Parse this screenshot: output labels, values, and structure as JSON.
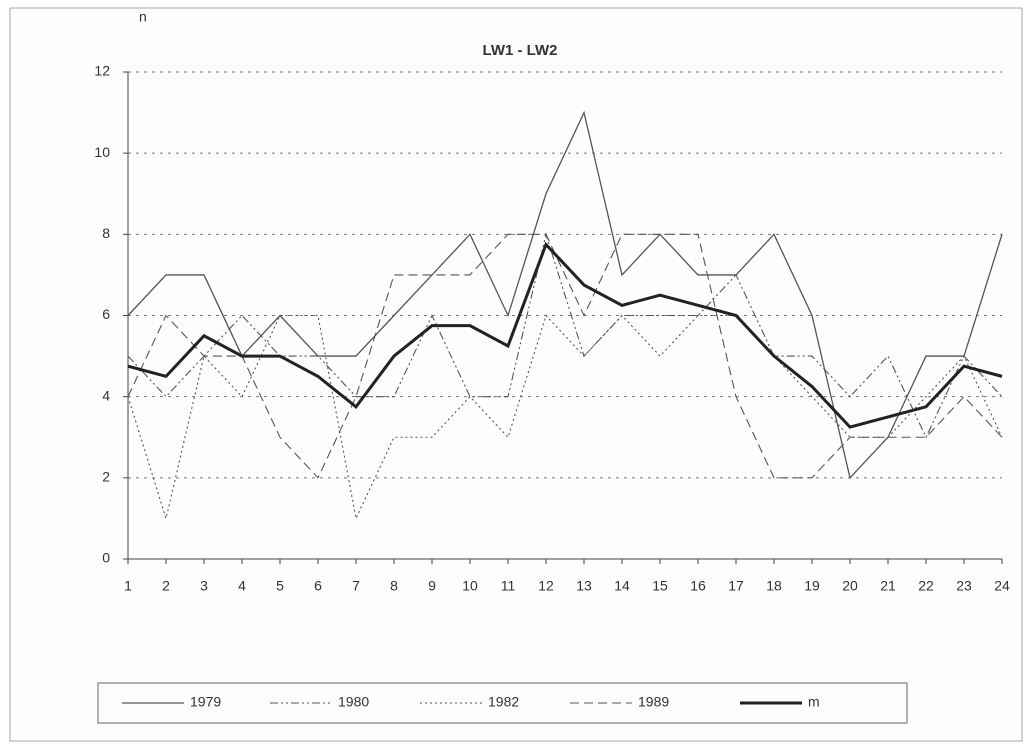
{
  "chart_data": {
    "type": "line",
    "title": "LW1 - LW2",
    "y_label": "n",
    "x": [
      1,
      2,
      3,
      4,
      5,
      6,
      7,
      8,
      9,
      10,
      11,
      12,
      13,
      14,
      15,
      16,
      17,
      18,
      19,
      20,
      21,
      22,
      23,
      24
    ],
    "xlim": [
      1,
      24
    ],
    "xticks": [
      1,
      2,
      3,
      4,
      5,
      6,
      7,
      8,
      9,
      10,
      11,
      12,
      13,
      14,
      15,
      16,
      17,
      18,
      19,
      20,
      21,
      22,
      23,
      24
    ],
    "ylim": [
      0,
      12
    ],
    "yticks": [
      0,
      2,
      4,
      6,
      8,
      10,
      12
    ],
    "grid": true,
    "legend": "bottom",
    "series": [
      {
        "name": "1979",
        "color": "#555555",
        "width": 1.3,
        "dash": "none",
        "values": [
          6,
          7,
          7,
          5,
          6,
          5,
          5,
          6,
          7,
          8,
          6,
          9,
          11,
          7,
          8,
          7,
          7,
          8,
          6,
          2,
          3,
          5,
          5,
          8
        ]
      },
      {
        "name": "1980",
        "color": "#555555",
        "width": 1.1,
        "dash": "8 3 2 3 2 3",
        "values": [
          5,
          4,
          5,
          6,
          5,
          5,
          4,
          4,
          6,
          4,
          4,
          8,
          5,
          6,
          6,
          6,
          7,
          5,
          5,
          4,
          5,
          3,
          5,
          4
        ]
      },
      {
        "name": "1982",
        "color": "#555555",
        "width": 1.1,
        "dash": "2 3",
        "values": [
          4,
          1,
          5,
          4,
          6,
          6,
          1,
          3,
          3,
          4,
          3,
          6,
          5,
          6,
          5,
          6,
          6,
          5,
          4,
          3,
          3,
          4,
          5,
          3
        ]
      },
      {
        "name": "1989",
        "color": "#555555",
        "width": 1.1,
        "dash": "9 5",
        "values": [
          4,
          6,
          5,
          5,
          3,
          2,
          4,
          7,
          7,
          7,
          8,
          8,
          6,
          8,
          8,
          8,
          4,
          2,
          2,
          3,
          3,
          3,
          4,
          3
        ]
      },
      {
        "name": "m",
        "color": "#222222",
        "width": 3,
        "dash": "none",
        "values": [
          4.75,
          4.5,
          5.5,
          5,
          5,
          4.5,
          3.75,
          5,
          5.75,
          5.75,
          5.25,
          7.75,
          6.75,
          6.25,
          6.5,
          6.25,
          6,
          5,
          4.25,
          3.25,
          3.5,
          3.75,
          4.75,
          4.5
        ]
      }
    ]
  }
}
